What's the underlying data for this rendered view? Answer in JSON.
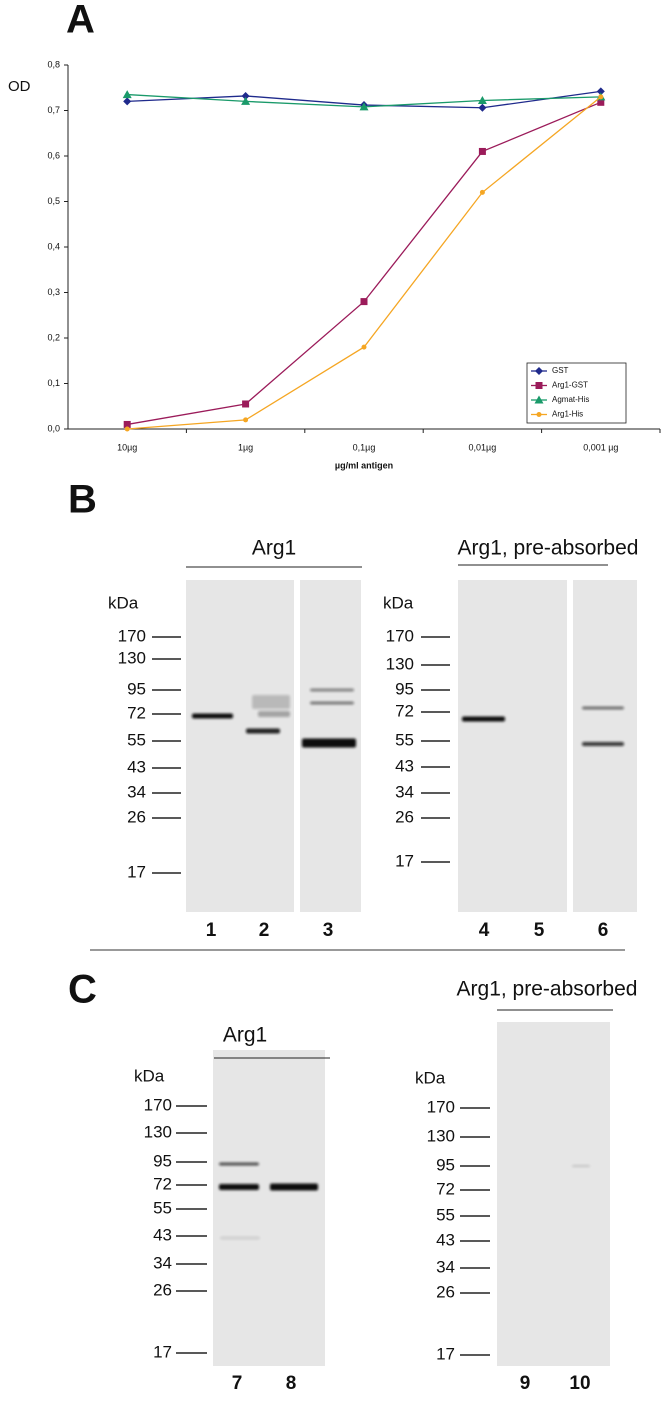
{
  "chart_data": {
    "type": "line",
    "panel_label": "A",
    "ylabel": "OD",
    "xlabel": "µg/ml antigen",
    "categories": [
      "10µg",
      "1µg",
      "0,1µg",
      "0,01µg",
      "0,001 µg"
    ],
    "ylim": [
      0,
      0.8
    ],
    "yticks": [
      {
        "value": 0,
        "label": "0,0"
      },
      {
        "value": 0.1,
        "label": "0,1"
      },
      {
        "value": 0.2,
        "label": "0,2"
      },
      {
        "value": 0.3,
        "label": "0,3"
      },
      {
        "value": 0.4,
        "label": "0,4"
      },
      {
        "value": 0.5,
        "label": "0,5"
      },
      {
        "value": 0.6,
        "label": "0,6"
      },
      {
        "value": 0.7,
        "label": "0,7"
      },
      {
        "value": 0.8,
        "label": "0,8"
      }
    ],
    "legend": "lower right",
    "series": [
      {
        "name": "GST",
        "color": "#1f2a8c",
        "values": [
          0.72,
          0.732,
          0.712,
          0.706,
          0.742
        ]
      },
      {
        "name": "Arg1-GST",
        "color": "#9b1b5a",
        "values": [
          0.01,
          0.055,
          0.28,
          0.61,
          0.718
        ]
      },
      {
        "name": "Agmat-His",
        "color": "#1a9a6a",
        "values": [
          0.735,
          0.72,
          0.708,
          0.722,
          0.73
        ]
      },
      {
        "name": "Arg1-His",
        "color": "#f5a623",
        "values": [
          0.0,
          0.02,
          0.18,
          0.52,
          0.73
        ]
      }
    ]
  },
  "blot_panels": [
    {
      "label": "B",
      "groups": [
        {
          "title": "Arg1",
          "unit": "kDa",
          "markers": [
            170,
            130,
            95,
            72,
            55,
            43,
            34,
            26,
            17
          ],
          "lanes": [
            "1",
            "2",
            "3"
          ]
        },
        {
          "title": "Arg1, pre-absorbed",
          "unit": "kDa",
          "markers": [
            170,
            130,
            95,
            72,
            55,
            43,
            34,
            26,
            17
          ],
          "lanes": [
            "4",
            "5",
            "6"
          ]
        }
      ]
    },
    {
      "label": "C",
      "groups": [
        {
          "title": "Arg1",
          "unit": "kDa",
          "markers": [
            170,
            130,
            95,
            72,
            55,
            43,
            34,
            26,
            17
          ],
          "lanes": [
            "7",
            "8"
          ]
        },
        {
          "title": "Arg1, pre-absorbed",
          "unit": "kDa",
          "markers": [
            170,
            130,
            95,
            72,
            55,
            43,
            34,
            26,
            17
          ],
          "lanes": [
            "9",
            "10"
          ]
        }
      ]
    }
  ]
}
